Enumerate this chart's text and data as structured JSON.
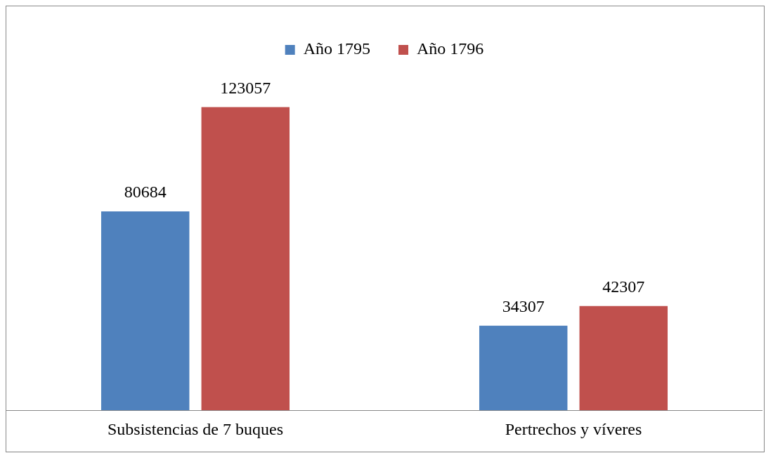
{
  "chart_data": {
    "type": "bar",
    "categories": [
      "Subsistencias de 7 buques",
      "Pertrechos y víveres"
    ],
    "series": [
      {
        "name": "Año 1795",
        "color": "#4f81bd",
        "values": [
          80684,
          34307
        ]
      },
      {
        "name": "Año 1796",
        "color": "#c0504d",
        "values": [
          123057,
          42307
        ]
      }
    ],
    "data_labels": true,
    "legend": "top",
    "grid": false
  }
}
